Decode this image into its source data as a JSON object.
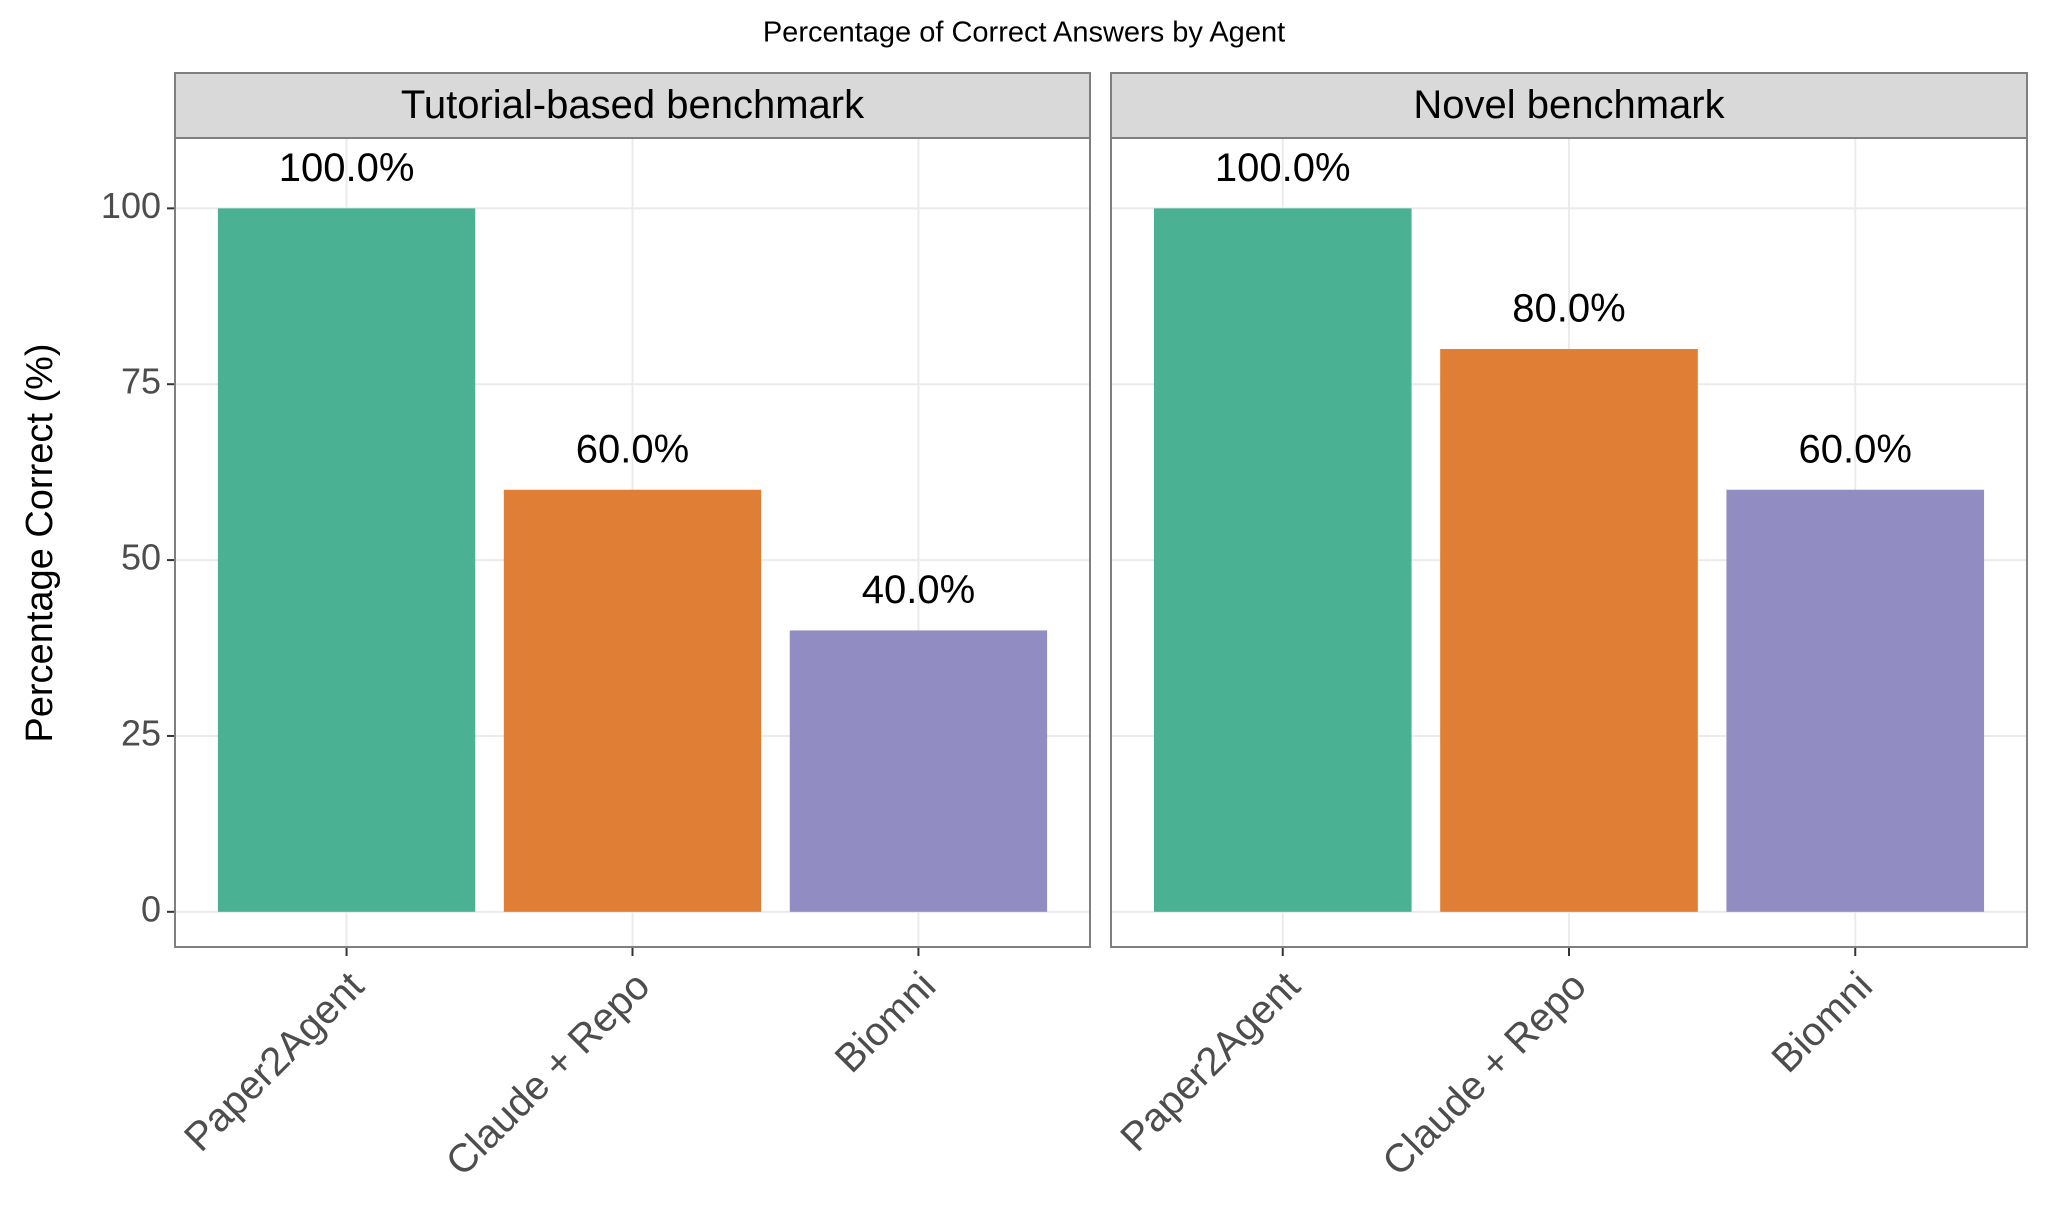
{
  "title": "Percentage of Correct Answers by Agent",
  "y_label": "Percentage Correct (%)",
  "chart_data": [
    {
      "type": "bar",
      "title": "Tutorial-based benchmark",
      "categories": [
        "Paper2Agent",
        "Claude + Repo",
        "Biomni"
      ],
      "values": [
        100,
        60,
        40
      ],
      "value_labels": [
        "100.0%",
        "60.0%",
        "40.0%"
      ],
      "colors": [
        "#4ab292",
        "#e07e35",
        "#918cc2"
      ],
      "ylim": [
        -5,
        110
      ],
      "yticks": [
        0,
        25,
        50,
        75,
        100
      ],
      "grid": true
    },
    {
      "type": "bar",
      "title": "Novel benchmark",
      "categories": [
        "Paper2Agent",
        "Claude + Repo",
        "Biomni"
      ],
      "values": [
        100,
        80,
        60
      ],
      "value_labels": [
        "100.0%",
        "80.0%",
        "60.0%"
      ],
      "colors": [
        "#4ab292",
        "#e07e35",
        "#918cc2"
      ],
      "ylim": [
        -5,
        110
      ],
      "yticks": [
        0,
        25,
        50,
        75,
        100
      ],
      "grid": true
    }
  ]
}
